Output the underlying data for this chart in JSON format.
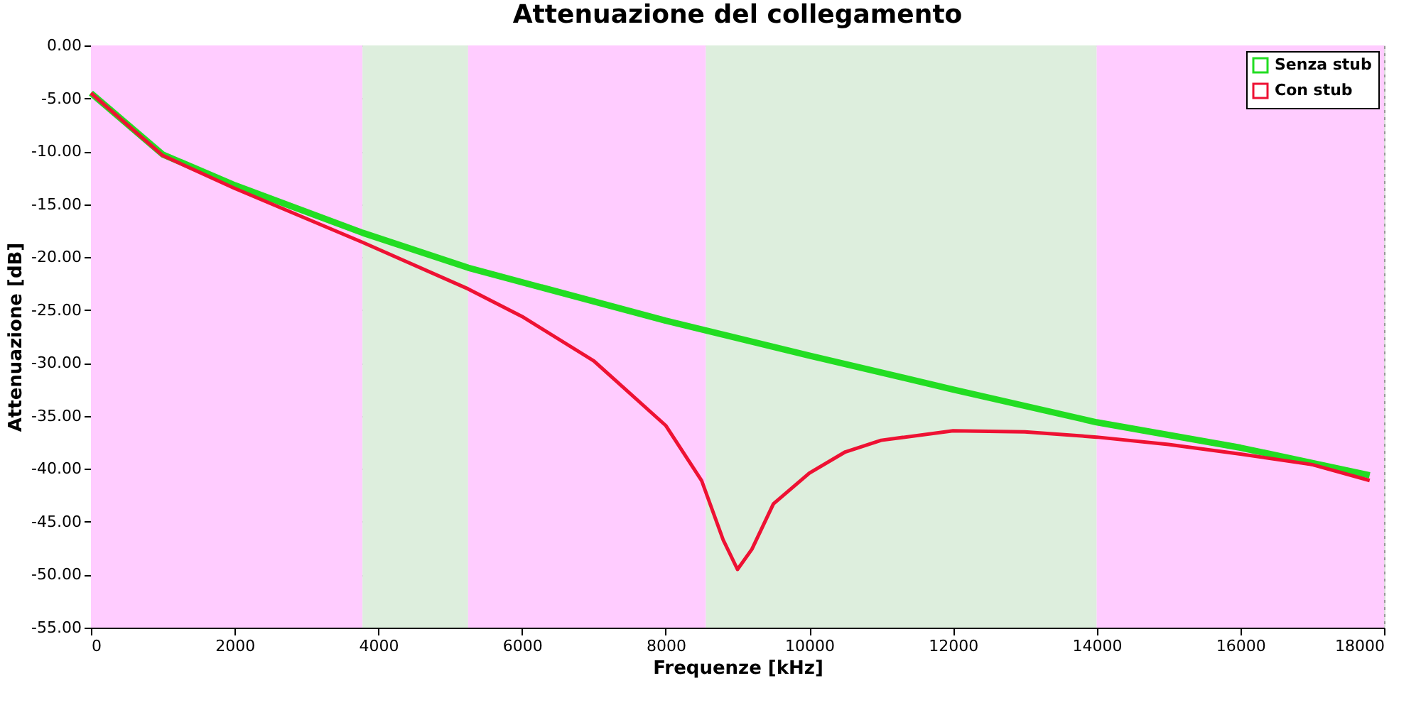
{
  "chart_data": {
    "type": "line",
    "title": "Attenuazione del collegamento",
    "xlabel": "Frequenze [kHz]",
    "ylabel": "Attenuazione [dB]",
    "xlim": [
      0,
      18000
    ],
    "xticks": [
      0,
      2000,
      4000,
      6000,
      8000,
      10000,
      12000,
      14000,
      16000,
      18000
    ],
    "ylim": [
      -55,
      0
    ],
    "yticks": [
      {
        "value": 0,
        "label": "0.00"
      },
      {
        "value": -5,
        "label": "-5.00"
      },
      {
        "value": -10,
        "label": "-10.00"
      },
      {
        "value": -15,
        "label": "-15.00"
      },
      {
        "value": -20,
        "label": "-20.00"
      },
      {
        "value": -25,
        "label": "-25.00"
      },
      {
        "value": -30,
        "label": "-30.00"
      },
      {
        "value": -35,
        "label": "-35.00"
      },
      {
        "value": -40,
        "label": "-40.00"
      },
      {
        "value": -45,
        "label": "-45.00"
      },
      {
        "value": -50,
        "label": "-50.00"
      },
      {
        "value": -55,
        "label": "-55.00"
      }
    ],
    "grid": true,
    "legend": "top right",
    "marker": "none",
    "line_style": "solid",
    "bands": [
      {
        "axis": "x",
        "from": 0,
        "to": 3780,
        "color": "#ffccff"
      },
      {
        "axis": "x",
        "from": 3780,
        "to": 5250,
        "color": "#ddeedd"
      },
      {
        "axis": "x",
        "from": 5250,
        "to": 8560,
        "color": "#ffccff"
      },
      {
        "axis": "x",
        "from": 8560,
        "to": 14000,
        "color": "#ddeedd"
      },
      {
        "axis": "x",
        "from": 14000,
        "to": 18000,
        "color": "#ffccff"
      }
    ],
    "series": [
      {
        "name": "Senza stub",
        "color": "#22dd22",
        "x": [
          0,
          1000,
          2000,
          3780,
          5250,
          8000,
          10000,
          12000,
          14000,
          16000,
          17800
        ],
        "values": [
          -4.5,
          -10.3,
          -13.2,
          -17.7,
          -21.0,
          -26.0,
          -29.3,
          -32.5,
          -35.6,
          -38.0,
          -40.6
        ]
      },
      {
        "name": "Con stub",
        "color": "#ee1133",
        "x": [
          0,
          1000,
          2000,
          3780,
          5250,
          6000,
          7000,
          8000,
          8500,
          8800,
          9000,
          9200,
          9500,
          10000,
          10500,
          11000,
          12000,
          13000,
          14000,
          15000,
          16000,
          17000,
          17800
        ],
        "values": [
          -4.5,
          -10.4,
          -13.5,
          -18.6,
          -23.0,
          -25.6,
          -29.8,
          -35.9,
          -41.1,
          -46.7,
          -49.5,
          -47.6,
          -43.3,
          -40.4,
          -38.4,
          -37.3,
          -36.4,
          -36.5,
          -37.0,
          -37.7,
          -38.6,
          -39.6,
          -41.1
        ]
      }
    ]
  }
}
